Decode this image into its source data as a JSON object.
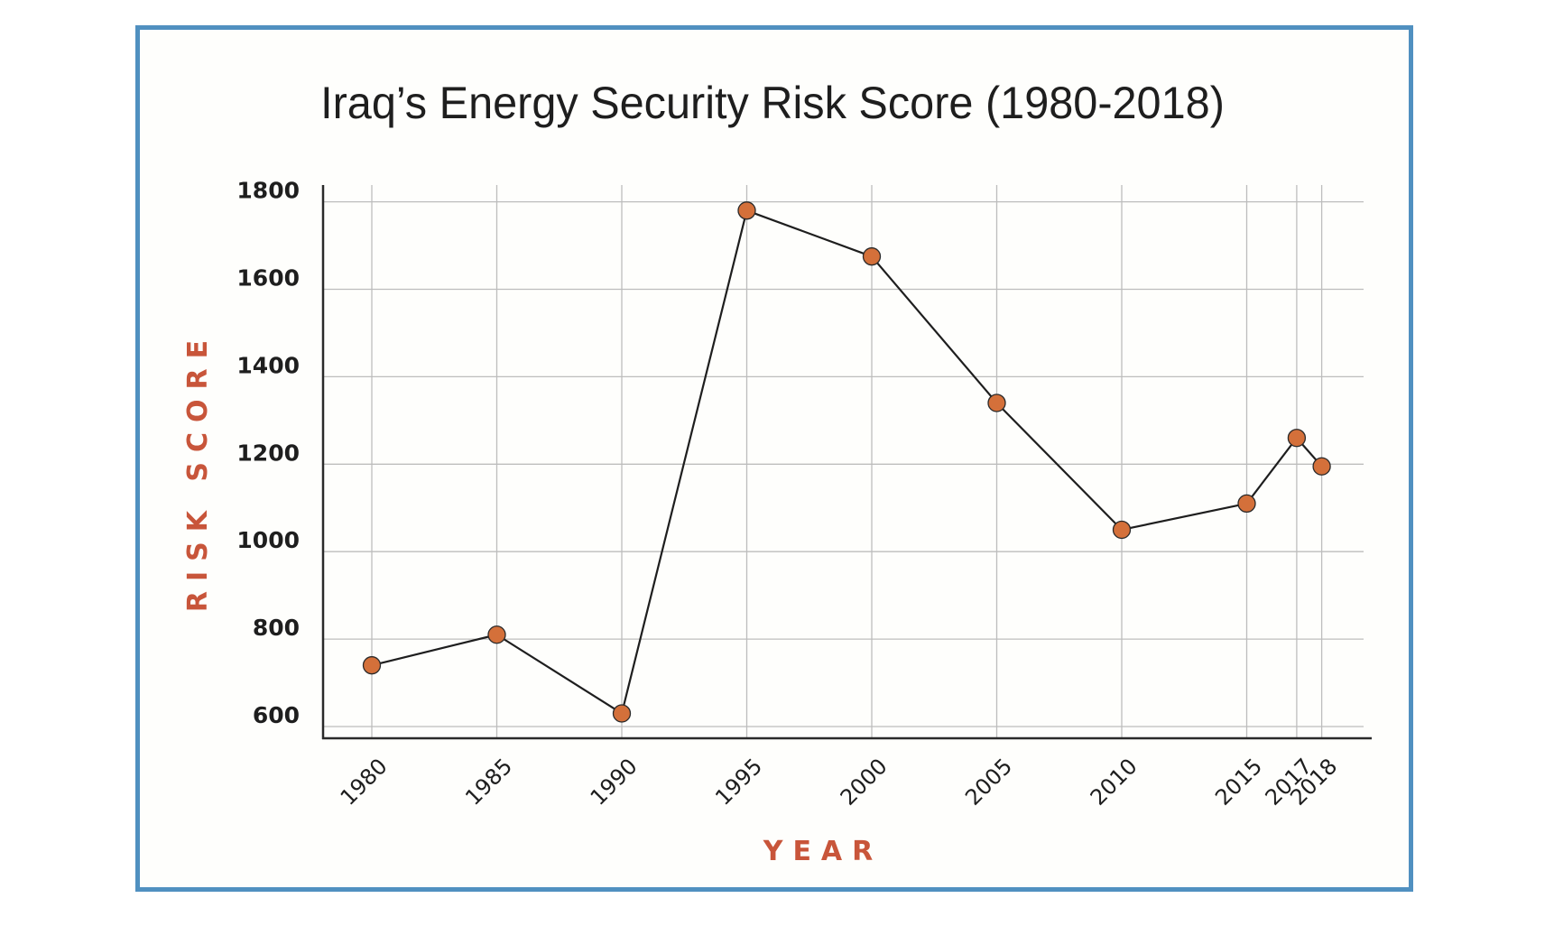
{
  "colors": {
    "frame": "#5090c0",
    "marker_fill": "#d4703a",
    "marker_stroke": "#2a2a2a",
    "line": "#1e1e1e",
    "grid": "#bdbdbd",
    "axis": "#2a2a2a",
    "axis_label": "#c8553a",
    "text": "#1e1e1e"
  },
  "chart_data": {
    "type": "line",
    "title": "Iraq’s Energy Security Risk Score (1980-2018)",
    "xlabel": "YEAR",
    "ylabel": "RISK SCORE",
    "x": [
      1980,
      1985,
      1990,
      1995,
      2000,
      2005,
      2010,
      2015,
      2017,
      2018
    ],
    "x_tick_labels": [
      "1980",
      "1985",
      "1990",
      "1995",
      "2000",
      "2005",
      "2010",
      "2015",
      "2017",
      "2018"
    ],
    "series": [
      {
        "name": "Risk Score",
        "values": [
          740,
          810,
          630,
          1780,
          1675,
          1340,
          1050,
          1110,
          1260,
          1195
        ]
      }
    ],
    "y_ticks": [
      600,
      800,
      1000,
      1200,
      1400,
      1600,
      1800
    ],
    "y_tick_labels": [
      "600",
      "800",
      "1000",
      "1200",
      "1400",
      "1600",
      "1800"
    ],
    "ylim": [
      573,
      1838
    ],
    "xlim": [
      1978,
      2020
    ],
    "grid": true,
    "legend": "none",
    "markers": "circle"
  }
}
